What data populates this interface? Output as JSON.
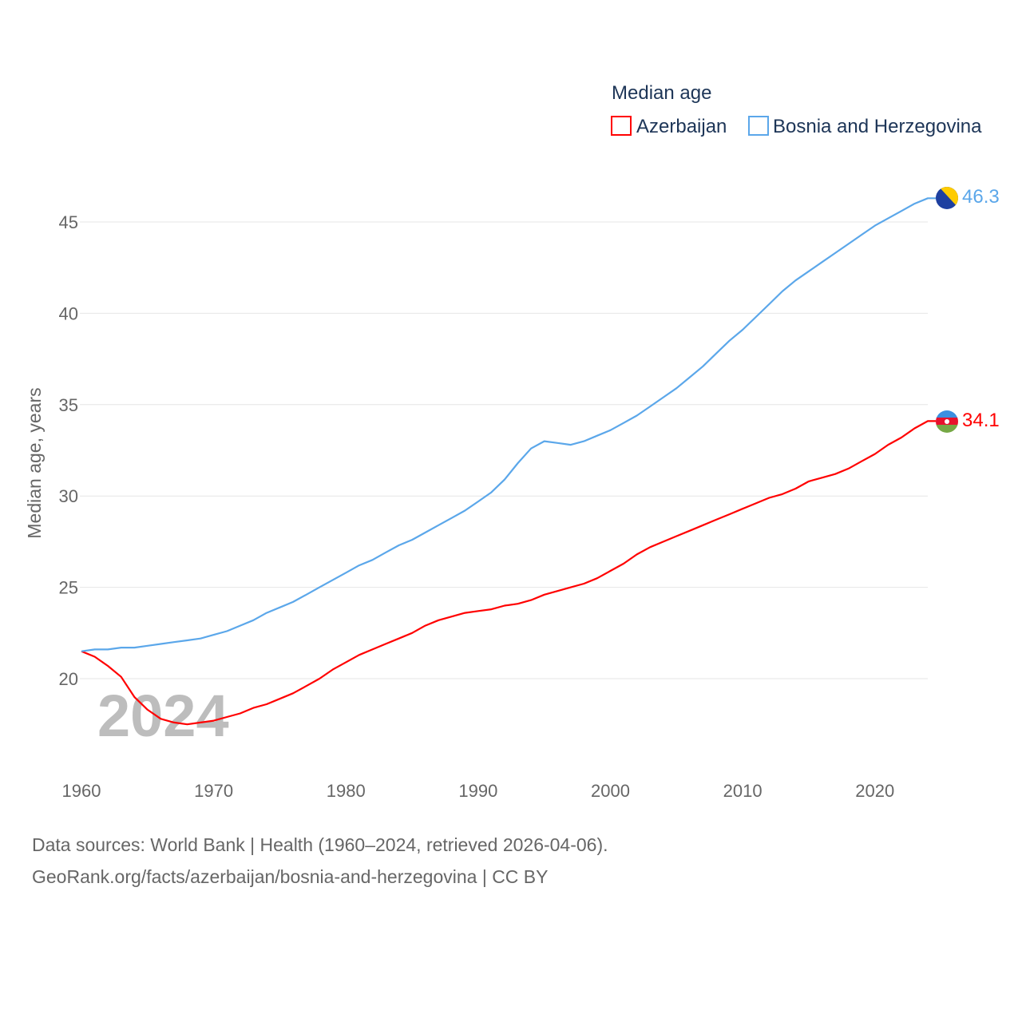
{
  "chart_data": {
    "type": "line",
    "title": "Median age",
    "ylabel": "Median age, years",
    "xlabel": "",
    "year_label": "2024",
    "xlim": [
      1960,
      2024
    ],
    "ylim": [
      16,
      47.5
    ],
    "xticks": [
      1960,
      1970,
      1980,
      1990,
      2000,
      2010,
      2020
    ],
    "yticks": [
      20,
      25,
      30,
      35,
      40,
      45
    ],
    "grid": true,
    "legend_position": "top-right",
    "x": [
      1960,
      1961,
      1962,
      1963,
      1964,
      1965,
      1966,
      1967,
      1968,
      1969,
      1970,
      1971,
      1972,
      1973,
      1974,
      1975,
      1976,
      1977,
      1978,
      1979,
      1980,
      1981,
      1982,
      1983,
      1984,
      1985,
      1986,
      1987,
      1988,
      1989,
      1990,
      1991,
      1992,
      1993,
      1994,
      1995,
      1996,
      1997,
      1998,
      1999,
      2000,
      2001,
      2002,
      2003,
      2004,
      2005,
      2006,
      2007,
      2008,
      2009,
      2010,
      2011,
      2012,
      2013,
      2014,
      2015,
      2016,
      2017,
      2018,
      2019,
      2020,
      2021,
      2022,
      2023,
      2024
    ],
    "series": [
      {
        "name": "Azerbaijan",
        "color": "#ff0000",
        "end_label": "34.1",
        "values": [
          21.5,
          21.2,
          20.7,
          20.1,
          19.0,
          18.3,
          17.8,
          17.6,
          17.5,
          17.6,
          17.7,
          17.9,
          18.1,
          18.4,
          18.6,
          18.9,
          19.2,
          19.6,
          20.0,
          20.5,
          20.9,
          21.3,
          21.6,
          21.9,
          22.2,
          22.5,
          22.9,
          23.2,
          23.4,
          23.6,
          23.7,
          23.8,
          24.0,
          24.1,
          24.3,
          24.6,
          24.8,
          25.0,
          25.2,
          25.5,
          25.9,
          26.3,
          26.8,
          27.2,
          27.5,
          27.8,
          28.1,
          28.4,
          28.7,
          29.0,
          29.3,
          29.6,
          29.9,
          30.1,
          30.4,
          30.8,
          31.0,
          31.2,
          31.5,
          31.9,
          32.3,
          32.8,
          33.2,
          33.7,
          34.1
        ]
      },
      {
        "name": "Bosnia and Herzegovina",
        "color": "#5ba7ea",
        "end_label": "46.3",
        "values": [
          21.5,
          21.6,
          21.6,
          21.7,
          21.7,
          21.8,
          21.9,
          22.0,
          22.1,
          22.2,
          22.4,
          22.6,
          22.9,
          23.2,
          23.6,
          23.9,
          24.2,
          24.6,
          25.0,
          25.4,
          25.8,
          26.2,
          26.5,
          26.9,
          27.3,
          27.6,
          28.0,
          28.4,
          28.8,
          29.2,
          29.7,
          30.2,
          30.9,
          31.8,
          32.6,
          33.0,
          32.9,
          32.8,
          33.0,
          33.3,
          33.6,
          34.0,
          34.4,
          34.9,
          35.4,
          35.9,
          36.5,
          37.1,
          37.8,
          38.5,
          39.1,
          39.8,
          40.5,
          41.2,
          41.8,
          42.3,
          42.8,
          43.3,
          43.8,
          44.3,
          44.8,
          45.2,
          45.6,
          46.0,
          46.3
        ]
      }
    ]
  },
  "footer": {
    "line1": "Data sources: World Bank | Health (1960–2024, retrieved 2026-04-06).",
    "line2": "GeoRank.org/facts/azerbaijan/bosnia-and-herzegovina | CC BY"
  }
}
